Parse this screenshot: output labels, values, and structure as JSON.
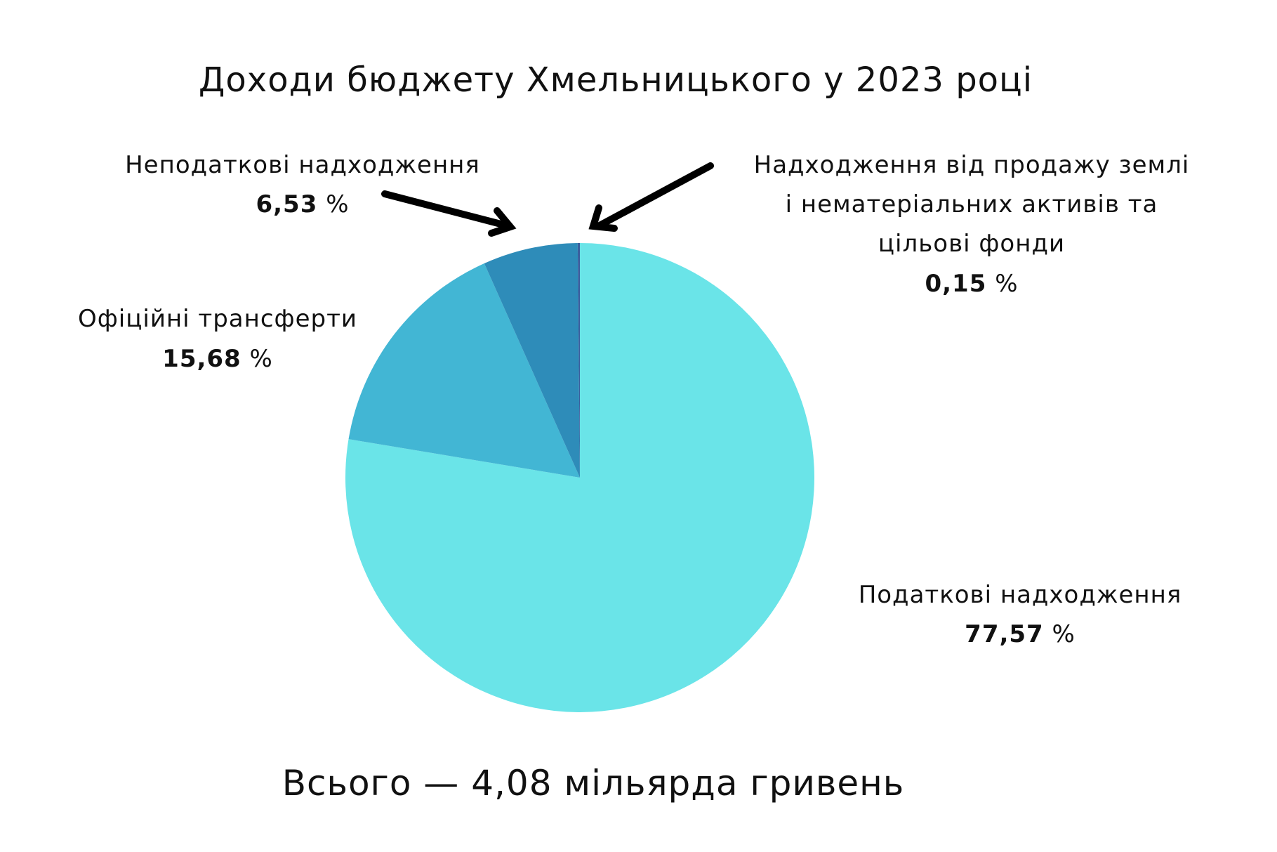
{
  "chart_data": {
    "type": "pie",
    "title": "Доходи бюджету Хмельницького у 2023 році",
    "subtitle": "Всього — 4,08 мільярда гривень",
    "unit": "%",
    "slices": [
      {
        "label": "Податкові надходження",
        "value": 77.57,
        "value_text": "77,57",
        "color": "#6ae4e8"
      },
      {
        "label": "Офіційні трансферти",
        "value": 15.68,
        "value_text": "15,68",
        "color": "#42b6d4"
      },
      {
        "label": "Неподаткові надходження",
        "value": 6.53,
        "value_text": "6,53",
        "color": "#2e8cb9"
      },
      {
        "label": "Надходження від продажу землі і нематеріальних активів та цільові фонди",
        "label_lines": [
          "Надходження від продажу землі",
          "і нематеріальних активів та",
          "цільові фонди"
        ],
        "value": 0.15,
        "value_text": "0,15",
        "color": "#3a5f9e"
      }
    ],
    "start": "top",
    "direction": "clockwise"
  }
}
